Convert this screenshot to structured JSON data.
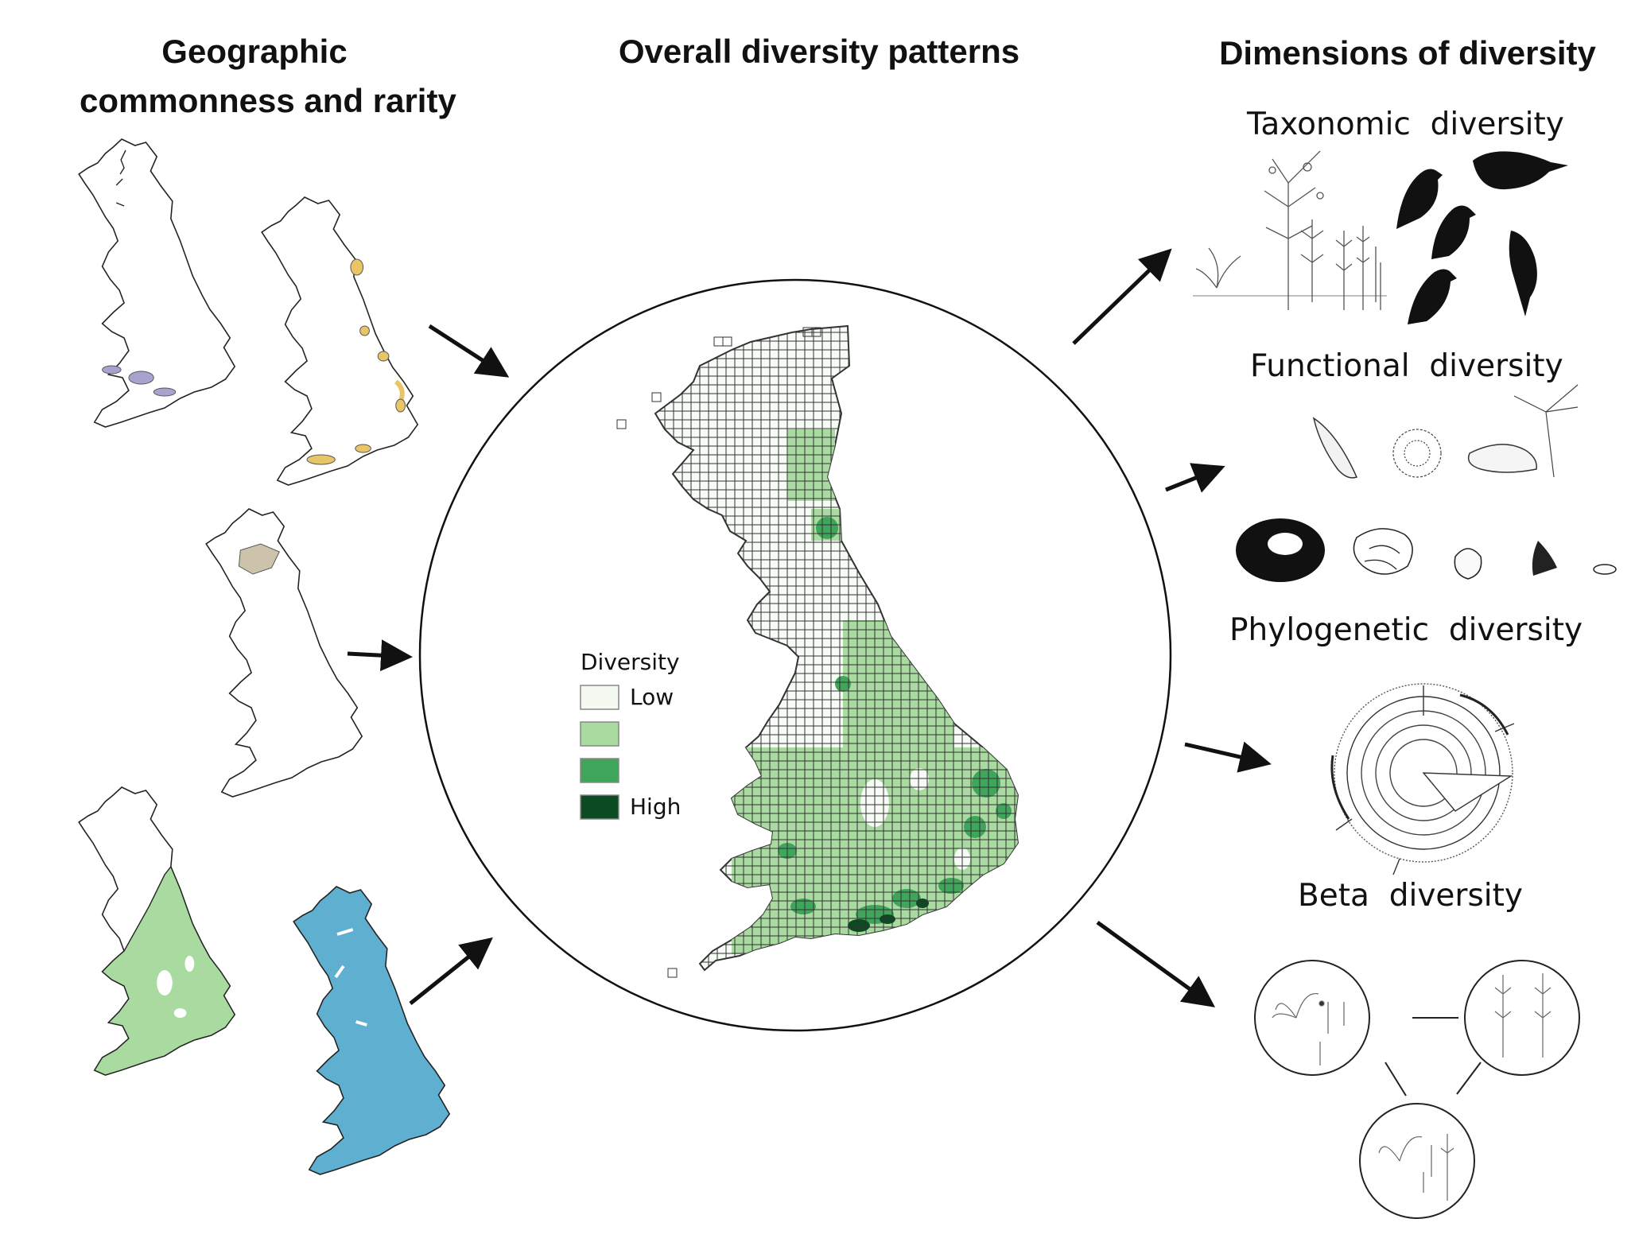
{
  "headings": {
    "left_line1": "Geographic",
    "left_line2": "commonness and rarity",
    "center": "Overall diversity patterns",
    "right": "Dimensions of diversity"
  },
  "dimensions": [
    {
      "word": "Taxonomic",
      "suffix": "diversity"
    },
    {
      "word": "Functional",
      "suffix": "diversity"
    },
    {
      "word": "Phylogenetic",
      "suffix": "diversity"
    },
    {
      "word": "Beta",
      "suffix": "diversity"
    }
  ],
  "legend": {
    "title": "Diversity",
    "items": [
      {
        "label": "Low",
        "color": "#f4f9f1"
      },
      {
        "label": "",
        "color": "#a9dba0"
      },
      {
        "label": "",
        "color": "#3fa55a"
      },
      {
        "label": "High",
        "color": "#0b4a22"
      }
    ]
  },
  "map_colors": {
    "purple": "#a7a3cf",
    "yellow": "#e8c567",
    "tan": "#cdc3ac",
    "green": "#a9dba0",
    "blue": "#5fb0d0"
  }
}
